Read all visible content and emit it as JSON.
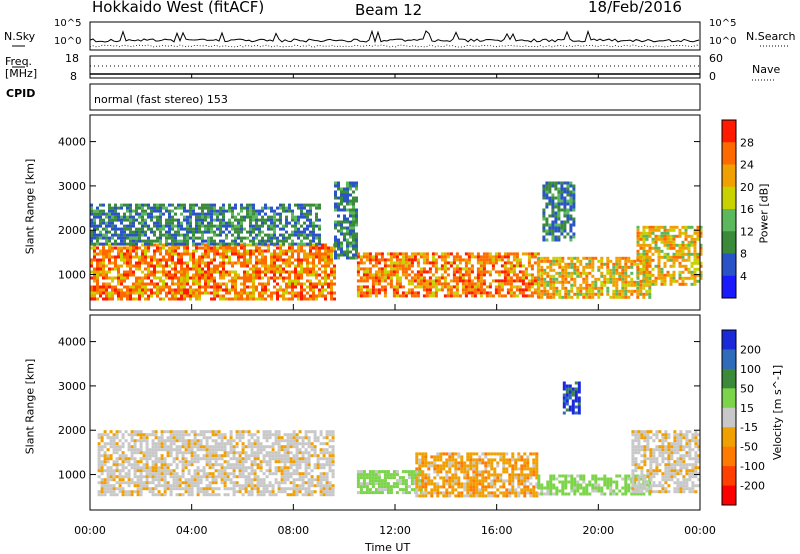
{
  "header": {
    "station": "Hokkaido West (fitACF)",
    "beam": "Beam 12",
    "date": "18/Feb/2016"
  },
  "strip": {
    "nsky_label": "N.Sky",
    "nsearch_label": "N.Search",
    "freq_label_line1": "Freq.",
    "freq_label_line2": "[MHz]",
    "nave_label": "Nave",
    "cpid_label": "CPID",
    "cpid_value": "normal (fast stereo) 153",
    "noise_ticks_left": [
      "10^5",
      "10^0"
    ],
    "noise_ticks_right": [
      "10^5",
      "10^0"
    ],
    "freq_ticks": [
      "18",
      "8"
    ],
    "nave_ticks": [
      "60",
      "0"
    ]
  },
  "chart_data": [
    {
      "type": "heatmap",
      "panel": "power",
      "ylabel": "Slant Range [km]",
      "ylim": [
        200,
        4600
      ],
      "yticks": [
        1000,
        2000,
        3000,
        4000
      ],
      "xlim": [
        0,
        24
      ],
      "colorbar": {
        "label": "Power [dB]",
        "levels": [
          4,
          8,
          12,
          16,
          20,
          24,
          28
        ],
        "colors": [
          "#1a1aff",
          "#2a53c8",
          "#3a8a3a",
          "#5cb85c",
          "#c8d200",
          "#f0a000",
          "#ff6a00",
          "#ff1a00"
        ]
      },
      "regions": [
        {
          "t0": 0.0,
          "t1": 9.6,
          "r0": 450,
          "r1": 1700,
          "level": "high"
        },
        {
          "t0": 0.0,
          "t1": 9.0,
          "r0": 1700,
          "r1": 2600,
          "level": "low"
        },
        {
          "t0": 9.6,
          "t1": 10.5,
          "r0": 1400,
          "r1": 3100,
          "level": "low"
        },
        {
          "t0": 10.5,
          "t1": 17.6,
          "r0": 500,
          "r1": 1500,
          "level": "high"
        },
        {
          "t0": 17.6,
          "t1": 22.0,
          "r0": 500,
          "r1": 1400,
          "level": "medium"
        },
        {
          "t0": 17.8,
          "t1": 19.0,
          "r0": 1800,
          "r1": 3100,
          "level": "low"
        },
        {
          "t0": 21.5,
          "t1": 24.0,
          "r0": 800,
          "r1": 2100,
          "level": "medium"
        }
      ]
    },
    {
      "type": "heatmap",
      "panel": "velocity",
      "ylabel": "Slant Range [km]",
      "ylim": [
        200,
        4600
      ],
      "yticks": [
        1000,
        2000,
        3000,
        4000
      ],
      "xlim": [
        0,
        24
      ],
      "xlabel": "Time UT",
      "xticks": [
        "00:00",
        "04:00",
        "08:00",
        "12:00",
        "16:00",
        "20:00",
        "00:00"
      ],
      "colorbar": {
        "label": "Velocity [m s^-1]",
        "levels": [
          200,
          100,
          50,
          15,
          -15,
          -50,
          -100,
          -200
        ],
        "colors": [
          "#1a2ad8",
          "#2e6bb8",
          "#3a8a3a",
          "#7cd44a",
          "#c8c8c8",
          "#f0a000",
          "#ff7a00",
          "#ff4000",
          "#ff0000"
        ]
      },
      "regions": [
        {
          "t0": 0.3,
          "t1": 9.6,
          "r0": 550,
          "r1": 2000,
          "level": "near-zero"
        },
        {
          "t0": 10.5,
          "t1": 13.0,
          "r0": 600,
          "r1": 1100,
          "level": "positive"
        },
        {
          "t0": 12.8,
          "t1": 17.6,
          "r0": 550,
          "r1": 1500,
          "level": "negative"
        },
        {
          "t0": 17.6,
          "t1": 22.0,
          "r0": 550,
          "r1": 1000,
          "level": "positive"
        },
        {
          "t0": 18.6,
          "t1": 19.3,
          "r0": 2400,
          "r1": 3100,
          "level": "strong-positive"
        },
        {
          "t0": 21.3,
          "t1": 24.0,
          "r0": 600,
          "r1": 2000,
          "level": "near-zero"
        }
      ]
    }
  ]
}
